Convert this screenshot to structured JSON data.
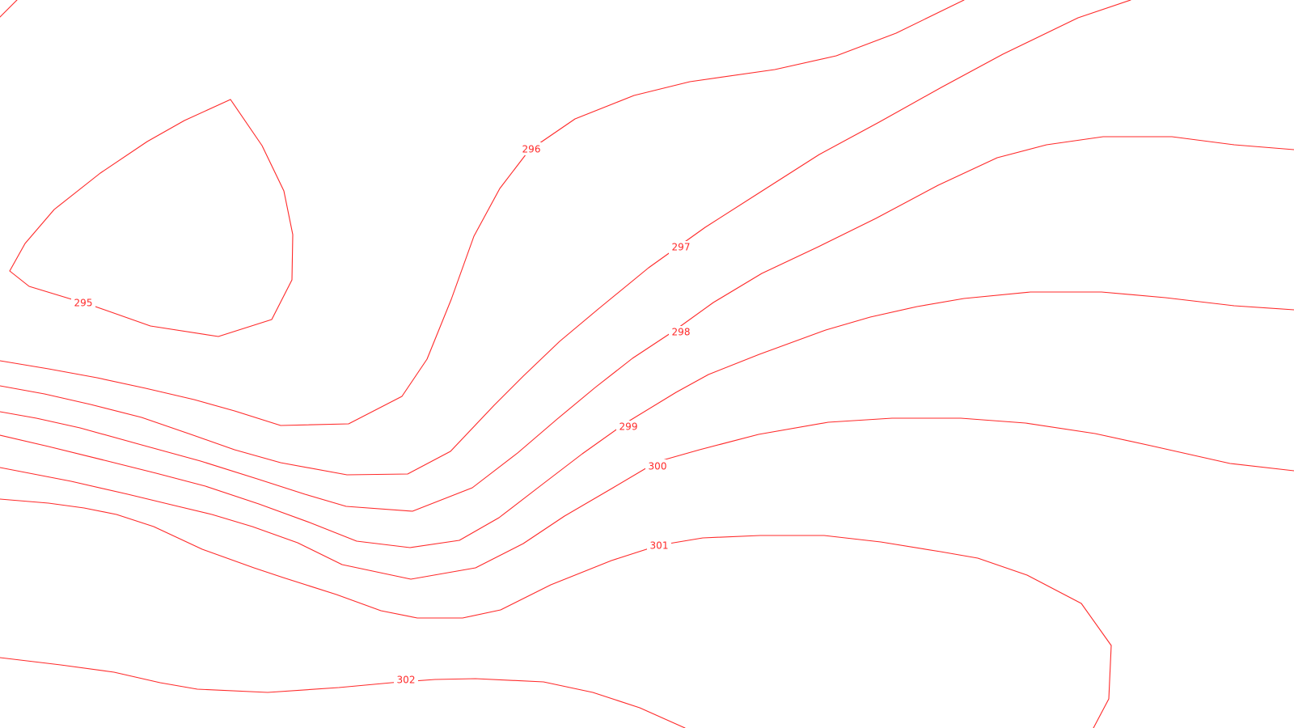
{
  "map": {
    "line_color": "#ff2a2a",
    "background_color": "#ffffff",
    "contours": [
      {
        "value": 295,
        "label": "295"
      },
      {
        "value": 296,
        "label": "296"
      },
      {
        "value": 296,
        "label": ""
      },
      {
        "value": 297,
        "label": "297"
      },
      {
        "value": 298,
        "label": "298"
      },
      {
        "value": 299,
        "label": "299"
      },
      {
        "value": 300,
        "label": "300"
      },
      {
        "value": 301,
        "label": "301"
      },
      {
        "value": 302,
        "label": "302"
      }
    ]
  }
}
